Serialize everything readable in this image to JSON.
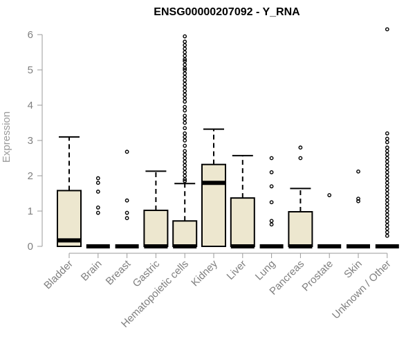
{
  "chart_data": {
    "type": "boxplot",
    "title": "ENSG00000207092 - Y_RNA",
    "ylabel": "Expression",
    "xlabel": "",
    "ylim": [
      0,
      6.2
    ],
    "yticks": [
      0,
      1,
      2,
      3,
      4,
      5,
      6
    ],
    "grid": false,
    "colors": {
      "box_fill": "#ede7cf",
      "box_stroke": "#000000",
      "axis": "#9a9a9a",
      "tick_text": "#7f7f7f"
    },
    "categories": [
      "Bladder",
      "Brain",
      "Breast",
      "Gastric",
      "Hematopoietic cells",
      "Kidney",
      "Liver",
      "Lung",
      "Pancreas",
      "Prostate",
      "Skin",
      "Unknown / Other"
    ],
    "boxes": [
      {
        "category": "Bladder",
        "whisker_low": 0,
        "q1": 0,
        "median": 0.17,
        "q3": 1.58,
        "whisker_high": 3.1,
        "outliers": []
      },
      {
        "category": "Brain",
        "whisker_low": 0,
        "q1": 0,
        "median": 0,
        "q3": 0,
        "whisker_high": 0,
        "outliers": [
          0.95,
          1.1,
          1.55,
          1.8,
          1.93
        ]
      },
      {
        "category": "Breast",
        "whisker_low": 0,
        "q1": 0,
        "median": 0,
        "q3": 0,
        "whisker_high": 0,
        "outliers": [
          0.8,
          0.95,
          1.3,
          2.68
        ]
      },
      {
        "category": "Gastric",
        "whisker_low": 0,
        "q1": 0,
        "median": 0,
        "q3": 1.02,
        "whisker_high": 2.13,
        "outliers": []
      },
      {
        "category": "Hematopoietic cells",
        "whisker_low": 0,
        "q1": 0,
        "median": 0,
        "q3": 0.72,
        "whisker_high": 1.78,
        "outliers": [
          1.85,
          1.9,
          2.0,
          2.1,
          2.2,
          2.3,
          2.4,
          2.5,
          2.6,
          2.7,
          2.85,
          3.0,
          3.1,
          3.2,
          3.35,
          3.5,
          3.6,
          3.7,
          3.85,
          3.95,
          4.1,
          4.2,
          4.3,
          4.4,
          4.5,
          4.6,
          4.7,
          4.8,
          4.9,
          5.0,
          5.05,
          5.15,
          5.25,
          5.3,
          5.4,
          5.5,
          5.6,
          5.7,
          5.8,
          5.95
        ]
      },
      {
        "category": "Kidney",
        "whisker_low": 0,
        "q1": 0,
        "median": 1.8,
        "q3": 2.32,
        "whisker_high": 3.32,
        "outliers": []
      },
      {
        "category": "Liver",
        "whisker_low": 0,
        "q1": 0,
        "median": 0,
        "q3": 1.37,
        "whisker_high": 2.57,
        "outliers": []
      },
      {
        "category": "Lung",
        "whisker_low": 0,
        "q1": 0,
        "median": 0,
        "q3": 0,
        "whisker_high": 0,
        "outliers": [
          0.62,
          0.72,
          1.25,
          1.7,
          2.1,
          2.5
        ]
      },
      {
        "category": "Pancreas",
        "whisker_low": 0,
        "q1": 0,
        "median": 0,
        "q3": 0.98,
        "whisker_high": 1.64,
        "outliers": [
          2.5,
          2.8
        ]
      },
      {
        "category": "Prostate",
        "whisker_low": 0,
        "q1": 0,
        "median": 0,
        "q3": 0,
        "whisker_high": 0,
        "outliers": [
          1.45
        ]
      },
      {
        "category": "Skin",
        "whisker_low": 0,
        "q1": 0,
        "median": 0,
        "q3": 0,
        "whisker_high": 0,
        "outliers": [
          1.28,
          1.35,
          2.12
        ]
      },
      {
        "category": "Unknown / Other",
        "whisker_low": 0,
        "q1": 0,
        "median": 0,
        "q3": 0,
        "whisker_high": 0,
        "outliers": [
          0.3,
          0.4,
          0.5,
          0.6,
          0.7,
          0.8,
          0.9,
          1.0,
          1.1,
          1.2,
          1.3,
          1.4,
          1.5,
          1.6,
          1.7,
          1.8,
          1.9,
          2.0,
          2.1,
          2.2,
          2.3,
          2.4,
          2.5,
          2.6,
          2.7,
          2.8,
          2.95,
          3.05,
          3.2,
          6.15
        ]
      }
    ]
  }
}
